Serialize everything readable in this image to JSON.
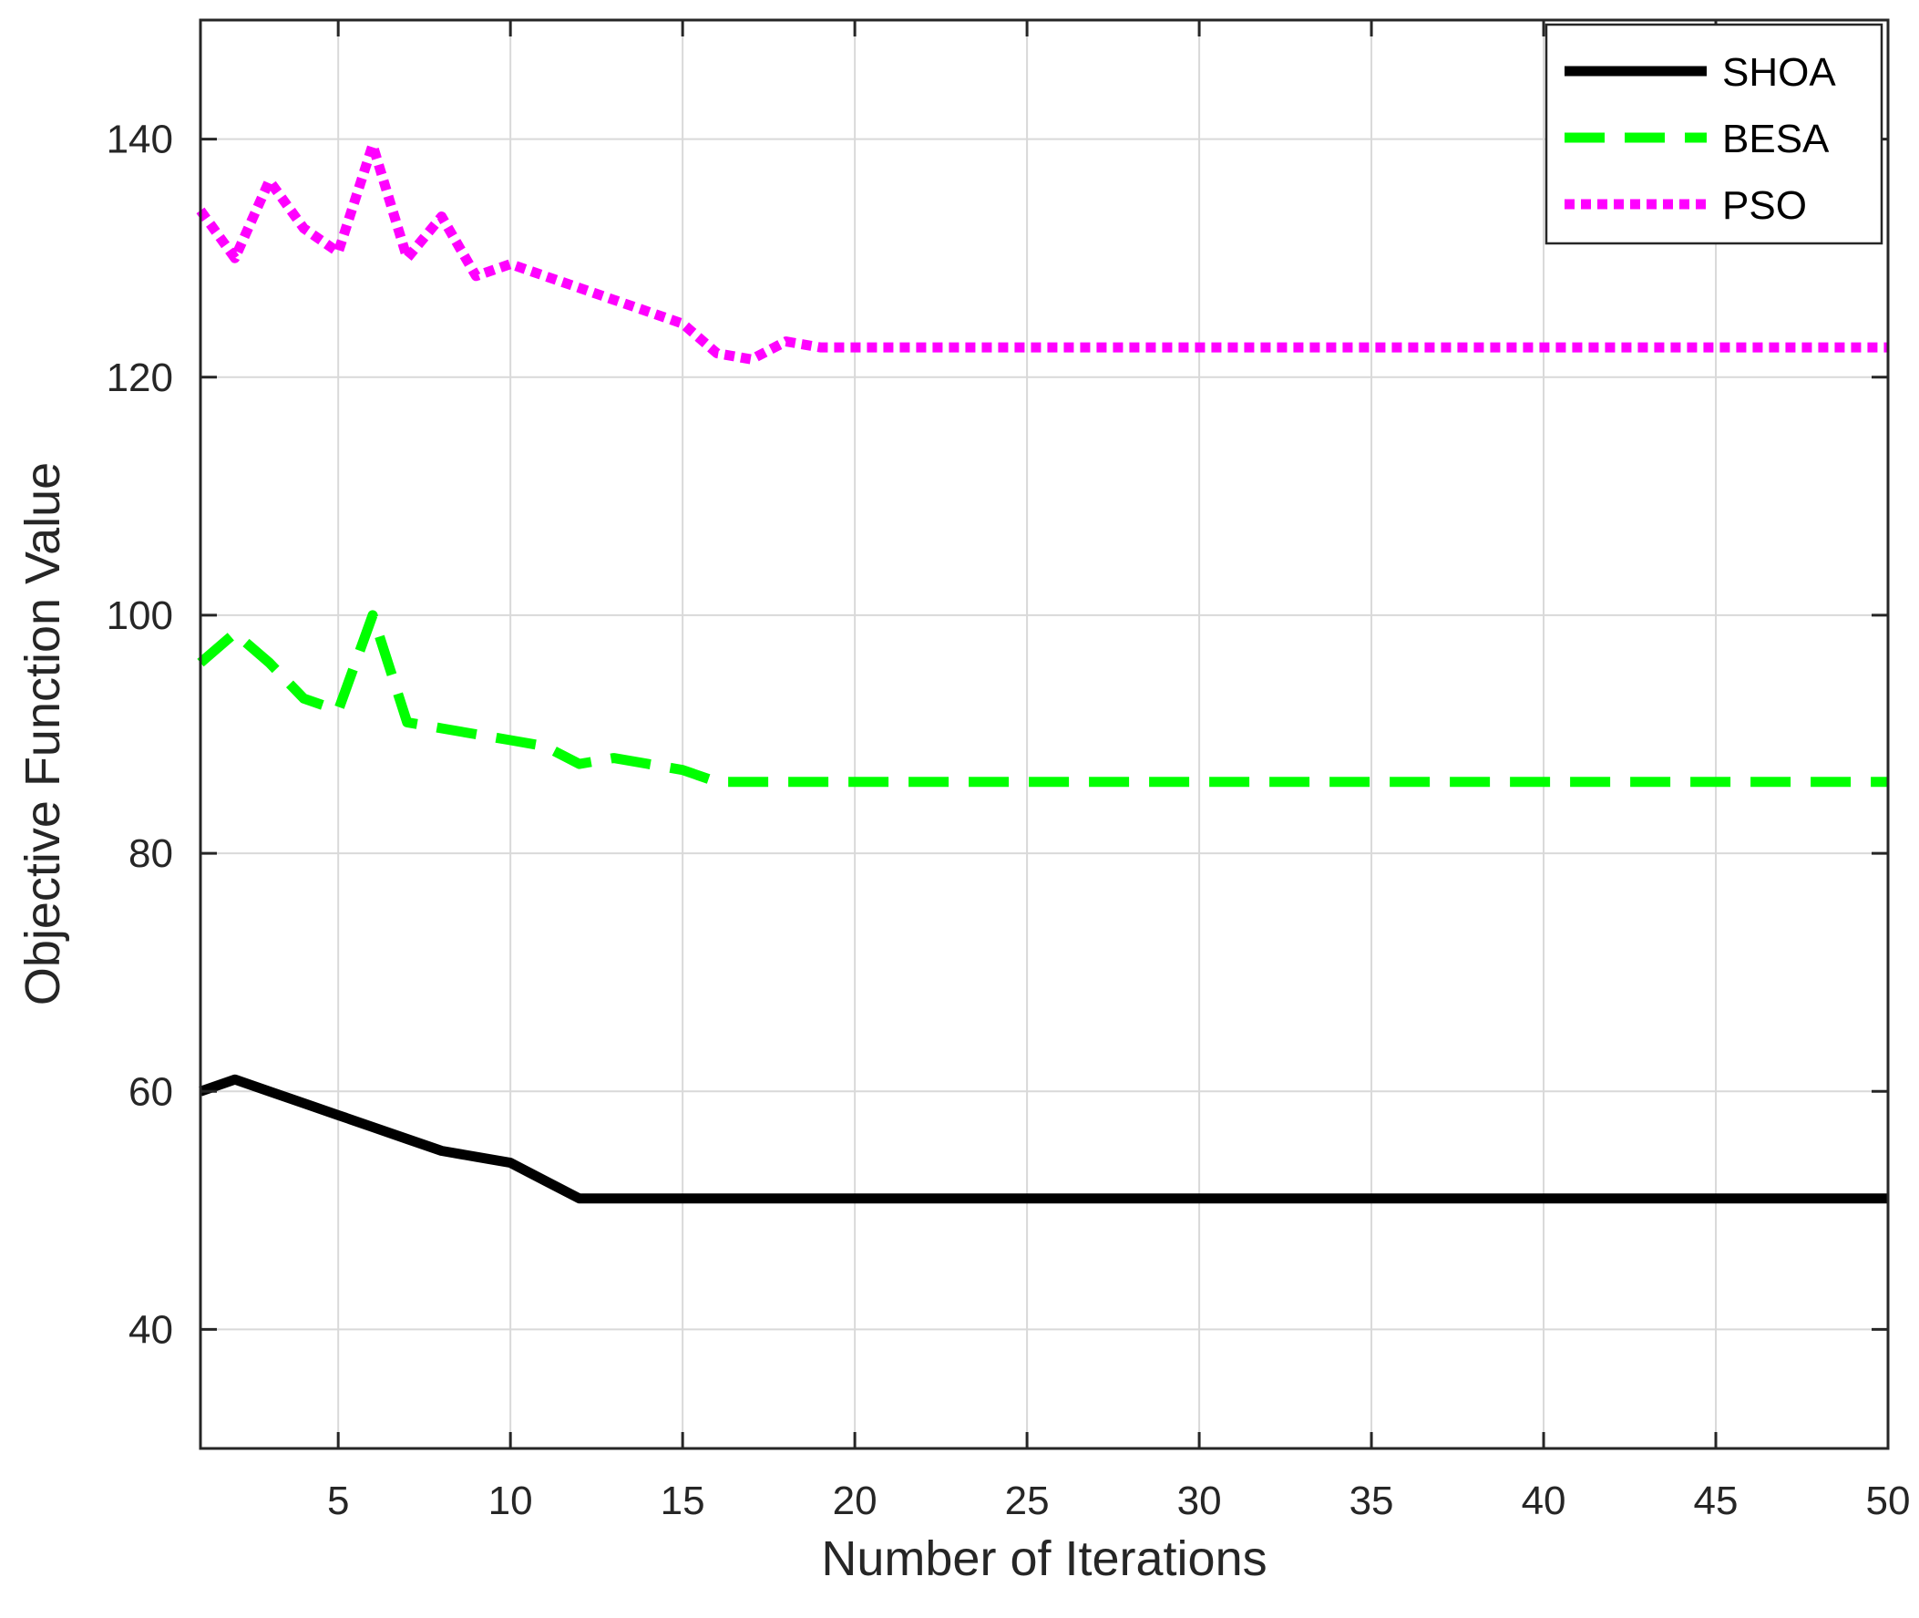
{
  "chart_data": {
    "type": "line",
    "xlabel": "Number of Iterations",
    "ylabel": "Objective Function Value",
    "xlim": [
      1,
      50
    ],
    "ylim": [
      30,
      150
    ],
    "xticks": [
      5,
      10,
      15,
      20,
      25,
      30,
      35,
      40,
      45,
      50
    ],
    "yticks": [
      40,
      60,
      80,
      100,
      120,
      140
    ],
    "grid": true,
    "legend_position": "top-right",
    "x": [
      1,
      2,
      3,
      4,
      5,
      6,
      7,
      8,
      9,
      10,
      11,
      12,
      13,
      14,
      15,
      16,
      17,
      18,
      19,
      20,
      21,
      22,
      23,
      24,
      25,
      26,
      27,
      28,
      29,
      30,
      31,
      32,
      33,
      34,
      35,
      36,
      37,
      38,
      39,
      40,
      41,
      42,
      43,
      44,
      45,
      46,
      47,
      48,
      49,
      50
    ],
    "series": [
      {
        "name": "SHOA",
        "color": "#000000",
        "style": "solid",
        "values": [
          60,
          61,
          60,
          59,
          58,
          57,
          56,
          55,
          54.5,
          54,
          52.5,
          51,
          51,
          51,
          51,
          51,
          51,
          51,
          51,
          51,
          51,
          51,
          51,
          51,
          51,
          51,
          51,
          51,
          51,
          51,
          51,
          51,
          51,
          51,
          51,
          51,
          51,
          51,
          51,
          51,
          51,
          51,
          51,
          51,
          51,
          51,
          51,
          51,
          51,
          51
        ]
      },
      {
        "name": "BESA",
        "color": "#00ff00",
        "style": "dashed",
        "values": [
          96,
          98.5,
          96,
          93,
          92,
          100,
          91,
          90.5,
          90,
          89.5,
          89,
          87.5,
          88,
          87.5,
          87,
          86,
          86,
          86,
          86,
          86,
          86,
          86,
          86,
          86,
          86,
          86,
          86,
          86,
          86,
          86,
          86,
          86,
          86,
          86,
          86,
          86,
          86,
          86,
          86,
          86,
          86,
          86,
          86,
          86,
          86,
          86,
          86,
          86,
          86,
          86
        ]
      },
      {
        "name": "PSO",
        "color": "#ff00ff",
        "style": "dotted",
        "values": [
          134,
          130,
          136.5,
          132.5,
          130.5,
          139.5,
          130,
          133.5,
          128.5,
          129.5,
          128.5,
          127.5,
          126.5,
          125.5,
          124.5,
          122,
          121.5,
          123,
          122.5,
          122.5,
          122.5,
          122.5,
          122.5,
          122.5,
          122.5,
          122.5,
          122.5,
          122.5,
          122.5,
          122.5,
          122.5,
          122.5,
          122.5,
          122.5,
          122.5,
          122.5,
          122.5,
          122.5,
          122.5,
          122.5,
          122.5,
          122.5,
          122.5,
          122.5,
          122.5,
          122.5,
          122.5,
          122.5,
          122.5,
          122.5
        ]
      }
    ]
  }
}
